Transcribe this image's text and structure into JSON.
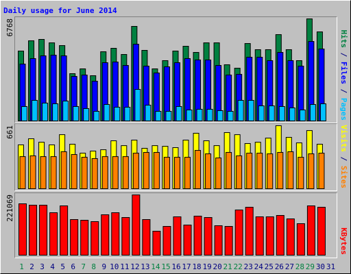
{
  "title": "Daily usage for June 2014",
  "title_color": "#0000ff",
  "legend_separator": " / ",
  "legend_separator_color": "#000080",
  "categories": [
    "1",
    "2",
    "3",
    "4",
    "5",
    "6",
    "7",
    "8",
    "9",
    "10",
    "11",
    "12",
    "13",
    "14",
    "15",
    "16",
    "17",
    "18",
    "19",
    "20",
    "21",
    "22",
    "23",
    "24",
    "25",
    "26",
    "27",
    "28",
    "29",
    "30",
    "31"
  ],
  "category_colors": [
    "#008040",
    "#000080",
    "#000080",
    "#000080",
    "#000080",
    "#000080",
    "#008040",
    "#008040",
    "#000080",
    "#000080",
    "#000080",
    "#000080",
    "#000080",
    "#008040",
    "#008040",
    "#000080",
    "#000080",
    "#000080",
    "#000080",
    "#000080",
    "#008040",
    "#008040",
    "#000080",
    "#000080",
    "#000080",
    "#000080",
    "#000080",
    "#008040",
    "#008040",
    "#000080",
    "#000080"
  ],
  "chart_data": [
    {
      "type": "bar",
      "ylim": [
        0,
        6768
      ],
      "yticks": [
        6768
      ],
      "series": [
        {
          "name": "Hits",
          "color": "#008040",
          "values": [
            4633,
            5314,
            5405,
            5178,
            4996,
            3134,
            3452,
            2998,
            4587,
            4815,
            4406,
            6268,
            4678,
            3452,
            3997,
            4633,
            4951,
            4542,
            5178,
            5178,
            3724,
            3497,
            5132,
            4724,
            4724,
            5723,
            4724,
            3997,
            6768,
            5905,
            null
          ]
        },
        {
          "name": "Files",
          "color": "#0000ff",
          "values": [
            3770,
            4133,
            4315,
            4360,
            4315,
            2952,
            3043,
            2634,
            3861,
            3906,
            3679,
            5087,
            3634,
            3179,
            3588,
            3861,
            4133,
            4042,
            4042,
            3679,
            3043,
            3089,
            4224,
            4224,
            3997,
            4542,
            3997,
            3634,
            5269,
            4769,
            null
          ]
        },
        {
          "name": "Pages",
          "color": "#00c0ff",
          "values": [
            954,
            1363,
            1181,
            1136,
            1317,
            954,
            818,
            636,
            1090,
            908,
            908,
            2089,
            1045,
            636,
            636,
            954,
            727,
            772,
            772,
            681,
            636,
            1363,
            1363,
            999,
            999,
            954,
            863,
            727,
            1090,
            1136,
            null
          ]
        }
      ]
    },
    {
      "type": "bar",
      "ylim": [
        0,
        661
      ],
      "yticks": [
        661
      ],
      "series": [
        {
          "name": "Visits",
          "color": "#ffff00",
          "values": [
            460,
            524,
            488,
            460,
            567,
            467,
            373,
            395,
            409,
            503,
            452,
            510,
            424,
            452,
            445,
            431,
            510,
            582,
            503,
            452,
            589,
            567,
            474,
            488,
            531,
            661,
            539,
            481,
            610,
            467,
            null
          ]
        },
        {
          "name": "Sites",
          "color": "#ff8000",
          "values": [
            337,
            345,
            337,
            337,
            388,
            359,
            330,
            316,
            337,
            337,
            337,
            373,
            381,
            381,
            330,
            330,
            330,
            402,
            366,
            323,
            381,
            345,
            373,
            373,
            366,
            381,
            388,
            330,
            366,
            373,
            null
          ]
        }
      ]
    },
    {
      "type": "bar",
      "ylim": [
        0,
        221069
      ],
      "yticks": [
        221069
      ],
      "series": [
        {
          "name": "KBytes",
          "color": "#ff0000",
          "values": [
            188400,
            183376,
            183376,
            155744,
            180864,
            130624,
            128112,
            123088,
            148208,
            155744,
            138160,
            221069,
            130624,
            87920,
            105504,
            140672,
            110528,
            143184,
            138160,
            108016,
            105504,
            165792,
            175840,
            140672,
            140672,
            145696,
            133136,
            115552,
            180864,
            175840,
            null
          ]
        }
      ]
    }
  ]
}
